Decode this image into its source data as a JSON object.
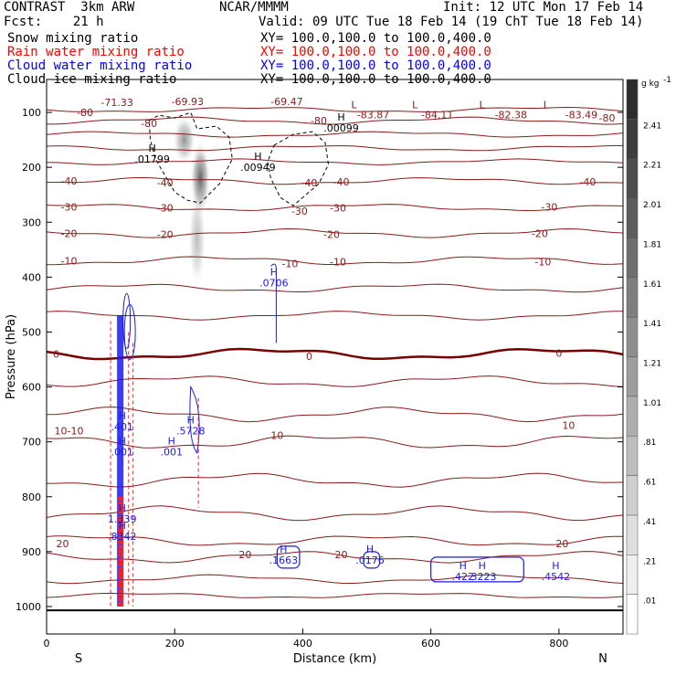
{
  "header": {
    "model": "CONTRAST  3km ARW",
    "center": "NCAR/MMMM",
    "init": "Init: 12 UTC Mon 17 Feb 14",
    "fcst": "Fcst:    21 h",
    "valid": "Valid: 09 UTC Tue 18 Feb 14 (19 ChT Tue 18 Feb 14)"
  },
  "legend": [
    {
      "name": "Snow mixing ratio",
      "xy": "XY= 100.0,100.0 to 100.0,400.0",
      "color": "#000000"
    },
    {
      "name": "Rain water mixing ratio",
      "xy": "XY= 100.0,100.0 to 100.0,400.0",
      "color": "#ff0000"
    },
    {
      "name": "Cloud water mixing ratio",
      "xy": "XY= 100.0,100.0 to 100.0,400.0",
      "color": "#0000ff"
    },
    {
      "name": "Cloud ice mixing ratio",
      "xy": "XY= 100.0,100.0 to 100.0,400.0",
      "color": "#000000"
    }
  ],
  "colors": {
    "temperature": "#8b1a1a",
    "freezing": "#7a0000",
    "cloud_water": "#1a1aee",
    "rain": "#ff2020",
    "cloud_ice": "#000000"
  },
  "chart_data": {
    "type": "heatmap",
    "xlabel": "Distance (km)",
    "ylabel": "Pressure (hPa)",
    "xlim": [
      0,
      900
    ],
    "ylim": [
      1050,
      40
    ],
    "x_ticks": [
      0,
      200,
      400,
      600,
      800
    ],
    "y_ticks": [
      100,
      200,
      300,
      400,
      500,
      600,
      700,
      800,
      900,
      1000
    ],
    "left_end": "S",
    "right_end": "N",
    "colorbar": {
      "unit": "g kg",
      "unit_exp": "-1",
      "labels": [
        ".01",
        ".21",
        ".41",
        ".61",
        ".81",
        "1.01",
        "1.21",
        "1.41",
        "1.61",
        "1.81",
        "2.01",
        "2.21",
        "2.41"
      ]
    },
    "temperature_contours": [
      {
        "value": -80,
        "p": 95,
        "amp": 4
      },
      {
        "value": -80,
        "p": 115,
        "amp": 5
      },
      {
        "value": -70,
        "p": 140,
        "amp": 4
      },
      {
        "value": -60,
        "p": 165,
        "amp": 4
      },
      {
        "value": -50,
        "p": 190,
        "amp": 4
      },
      {
        "value": -40,
        "p": 225,
        "amp": 5
      },
      {
        "value": -30,
        "p": 273,
        "amp": 5
      },
      {
        "value": -20,
        "p": 320,
        "amp": 6
      },
      {
        "value": -10,
        "p": 370,
        "amp": 6
      },
      {
        "value": -10,
        "p": 420,
        "amp": 6
      },
      {
        "value": -5,
        "p": 470,
        "amp": 6
      },
      {
        "value": 0,
        "p": 540,
        "amp": 8,
        "bold": true
      },
      {
        "value": 5,
        "p": 590,
        "amp": 8
      },
      {
        "value": 10,
        "p": 650,
        "amp": 10
      },
      {
        "value": 10,
        "p": 700,
        "amp": 10
      },
      {
        "value": 15,
        "p": 770,
        "amp": 10
      },
      {
        "value": 15,
        "p": 830,
        "amp": 10
      },
      {
        "value": 20,
        "p": 880,
        "amp": 8
      },
      {
        "value": 20,
        "p": 910,
        "amp": 8
      },
      {
        "value": 25,
        "p": 950,
        "amp": 6
      },
      {
        "value": 25,
        "p": 980,
        "amp": 4
      }
    ],
    "contour_labels": [
      {
        "text": "-80",
        "x": 60,
        "p": 100
      },
      {
        "text": "-71.33",
        "x": 110,
        "p": 82
      },
      {
        "text": "-69.93",
        "x": 220,
        "p": 80
      },
      {
        "text": "-69.47",
        "x": 375,
        "p": 80
      },
      {
        "text": "-80",
        "x": 160,
        "p": 120
      },
      {
        "text": "-80",
        "x": 425,
        "p": 115
      },
      {
        "text": "-83.87",
        "x": 510,
        "p": 104
      },
      {
        "text": "-84.11",
        "x": 610,
        "p": 104
      },
      {
        "text": "-82.38",
        "x": 725,
        "p": 104
      },
      {
        "text": "-83.49",
        "x": 835,
        "p": 104
      },
      {
        "text": "-80",
        "x": 875,
        "p": 110
      },
      {
        "text": "-40",
        "x": 35,
        "p": 225
      },
      {
        "text": "-40",
        "x": 185,
        "p": 228
      },
      {
        "text": "-40",
        "x": 410,
        "p": 228
      },
      {
        "text": "-40",
        "x": 460,
        "p": 226
      },
      {
        "text": "-40",
        "x": 845,
        "p": 226
      },
      {
        "text": "-30",
        "x": 35,
        "p": 272
      },
      {
        "text": "-30",
        "x": 185,
        "p": 274
      },
      {
        "text": "-30",
        "x": 395,
        "p": 280
      },
      {
        "text": "-30",
        "x": 455,
        "p": 274
      },
      {
        "text": "-30",
        "x": 785,
        "p": 272
      },
      {
        "text": "-20",
        "x": 35,
        "p": 320
      },
      {
        "text": "-20",
        "x": 185,
        "p": 322
      },
      {
        "text": "-20",
        "x": 445,
        "p": 322
      },
      {
        "text": "-20",
        "x": 770,
        "p": 320
      },
      {
        "text": "-10",
        "x": 35,
        "p": 370
      },
      {
        "text": "-10",
        "x": 455,
        "p": 372
      },
      {
        "text": "-10",
        "x": 775,
        "p": 372
      },
      {
        "text": "-10",
        "x": 380,
        "p": 375
      },
      {
        "text": "0",
        "x": 15,
        "p": 540
      },
      {
        "text": "0",
        "x": 410,
        "p": 544
      },
      {
        "text": "0",
        "x": 800,
        "p": 538
      },
      {
        "text": "10-10",
        "x": 35,
        "p": 680
      },
      {
        "text": "10",
        "x": 360,
        "p": 688
      },
      {
        "text": "10",
        "x": 815,
        "p": 670
      },
      {
        "text": "20",
        "x": 25,
        "p": 885
      },
      {
        "text": "20",
        "x": 310,
        "p": 905
      },
      {
        "text": "20",
        "x": 460,
        "p": 905
      },
      {
        "text": "20",
        "x": 805,
        "p": 885
      }
    ],
    "high_markers": [
      {
        "text": "H",
        "value": ".01799",
        "x": 165,
        "p": 185
      },
      {
        "text": "H",
        "value": ".00949",
        "x": 330,
        "p": 200
      },
      {
        "text": "H",
        "value": ".00099",
        "x": 460,
        "p": 128
      },
      {
        "text": "H",
        "value": ".0706",
        "x": 355,
        "p": 410
      },
      {
        "text": "H",
        "value": ".401",
        "x": 118,
        "p": 672
      },
      {
        "text": "H",
        "value": ".001",
        "x": 118,
        "p": 718
      },
      {
        "text": "H",
        "value": ".5728",
        "x": 225,
        "p": 680
      },
      {
        "text": "H",
        "value": ".001",
        "x": 195,
        "p": 718
      },
      {
        "text": "H",
        "value": "1.339",
        "x": 118,
        "p": 840
      },
      {
        "text": "H",
        "value": ".8342",
        "x": 118,
        "p": 872
      },
      {
        "text": "H",
        "value": ".1663",
        "x": 370,
        "p": 915
      },
      {
        "text": "H",
        "value": ".0176",
        "x": 505,
        "p": 915
      },
      {
        "text": "H",
        "value": ".422",
        "x": 650,
        "p": 945
      },
      {
        "text": "H",
        "value": ".3223",
        "x": 680,
        "p": 945
      },
      {
        "text": "H",
        "value": ".4542",
        "x": 795,
        "p": 945
      }
    ],
    "low_markers": [
      {
        "x": 480,
        "p": 92
      },
      {
        "x": 575,
        "p": 92
      },
      {
        "x": 680,
        "p": 92
      },
      {
        "x": 780,
        "p": 92
      }
    ],
    "snow_plumes": [
      {
        "x": 215,
        "p": 150,
        "rx": 18,
        "rp": 45,
        "intensity": 0.55
      },
      {
        "x": 240,
        "p": 220,
        "rx": 16,
        "rp": 70,
        "intensity": 0.8
      },
      {
        "x": 235,
        "p": 330,
        "rx": 14,
        "rp": 90,
        "intensity": 0.35
      }
    ]
  }
}
